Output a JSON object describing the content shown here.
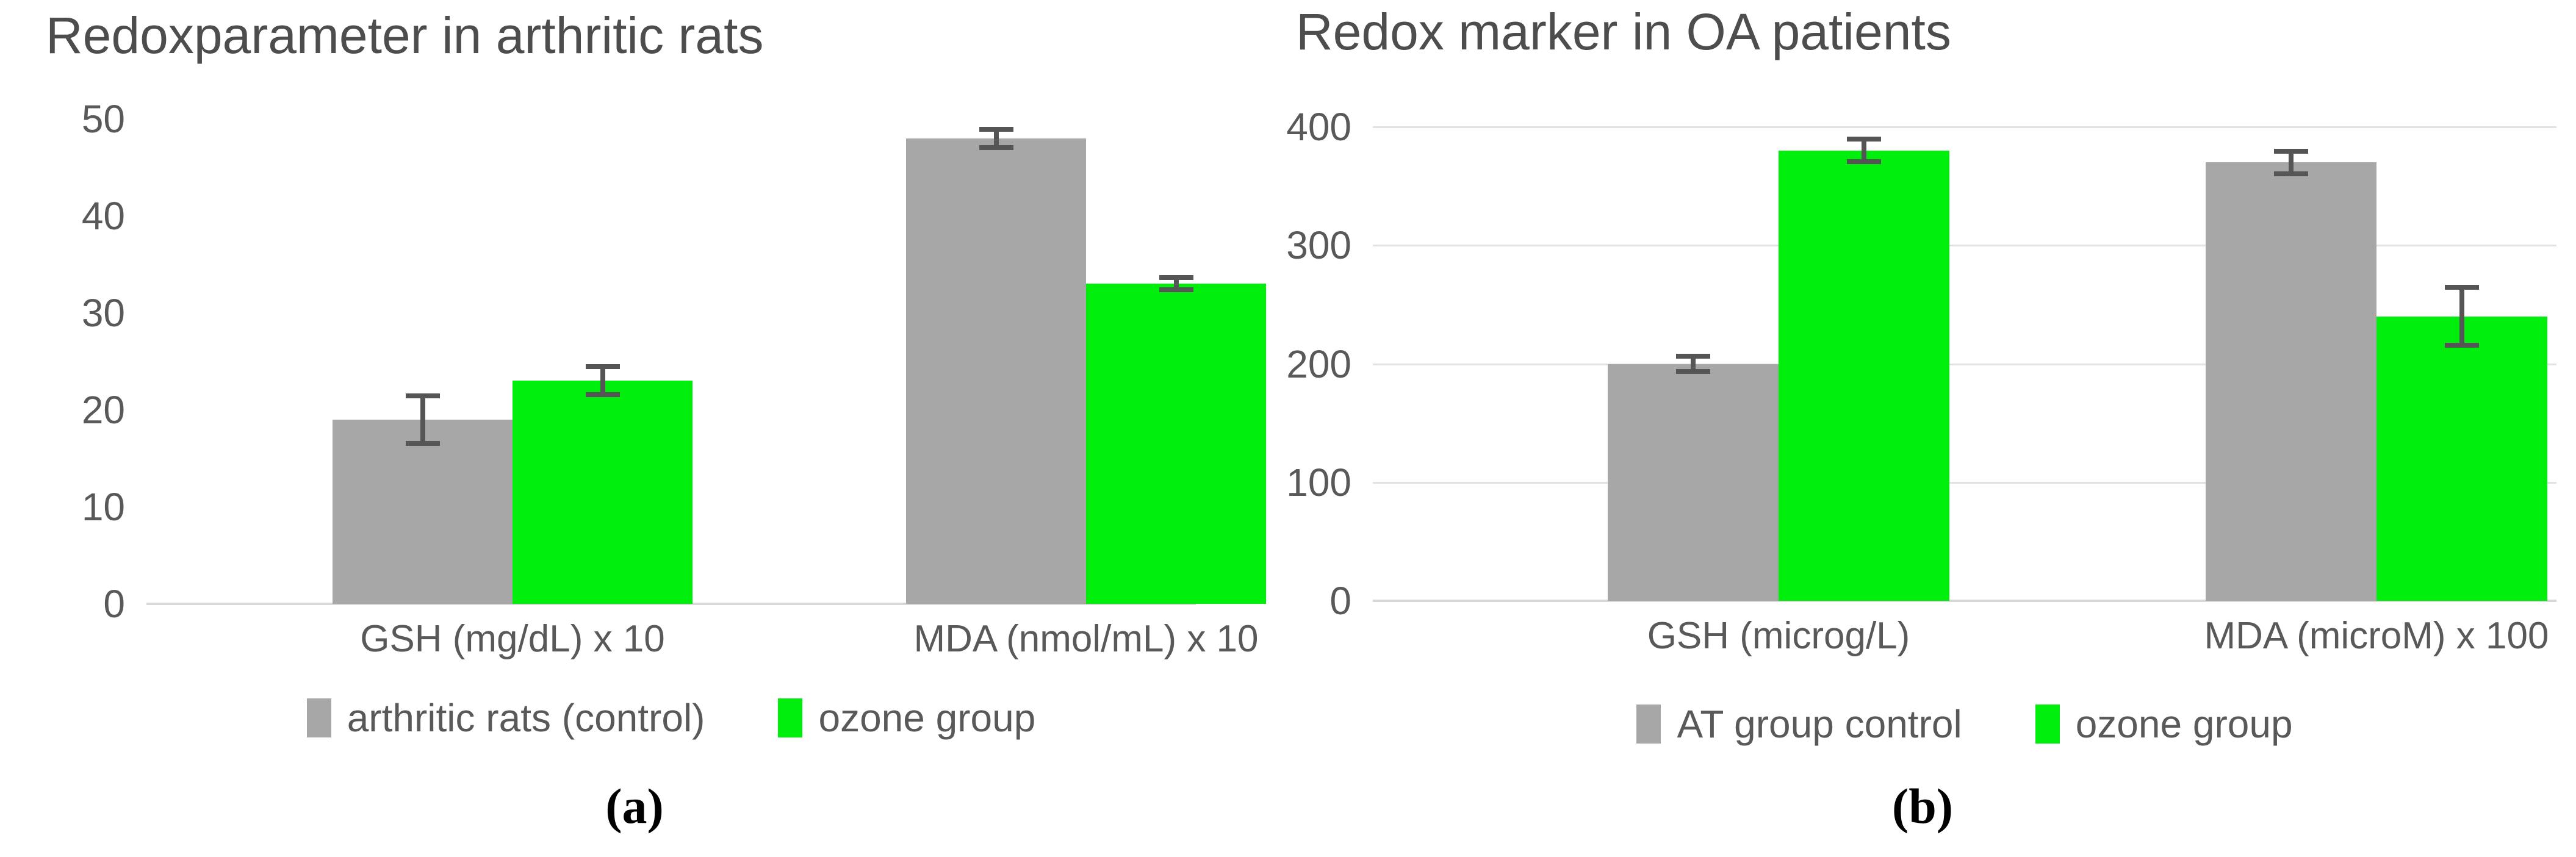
{
  "chart_data": [
    {
      "type": "bar",
      "title": "Redoxparameter in arthritic rats",
      "panel_label": "(a)",
      "categories": [
        "GSH (mg/dL) x 10",
        "MDA (nmol/mL) x 10"
      ],
      "series": [
        {
          "name": "arthritic rats (control)",
          "color": "#a7a7a7",
          "values": [
            19,
            48
          ],
          "error_bars": [
            2.5,
            1
          ]
        },
        {
          "name": "ozone group",
          "color": "#00ee0c",
          "values": [
            23,
            33
          ],
          "error_bars": [
            1.5,
            0.7
          ]
        }
      ],
      "ylim": [
        0,
        50
      ],
      "yticks": [
        0,
        10,
        20,
        30,
        40,
        50
      ],
      "gridlines": false,
      "legend_position": "bottom"
    },
    {
      "type": "bar",
      "title": "Redox marker in OA patients",
      "panel_label": "(b)",
      "categories": [
        "GSH (microg/L)",
        "MDA (microM) x 100"
      ],
      "series": [
        {
          "name": "AT group control",
          "color": "#a7a7a7",
          "values": [
            200,
            370
          ],
          "error_bars": [
            7,
            10
          ]
        },
        {
          "name": "ozone group",
          "color": "#00ee0c",
          "values": [
            380,
            240
          ],
          "error_bars": [
            10,
            25
          ]
        }
      ],
      "ylim": [
        0,
        400
      ],
      "yticks": [
        0,
        100,
        200,
        300,
        400
      ],
      "gridlines": true,
      "legend_position": "bottom"
    }
  ],
  "colors": {
    "control_gray": "#a7a7a7",
    "ozone_green": "#00ee0c",
    "error_bar": "#555555",
    "axis_text": "#595959",
    "title_text": "#4d4d4d",
    "gridline": "#e2e2e2",
    "baseline": "#d8d8d8",
    "panel_label_text": "#000000",
    "background": "#ffffff"
  }
}
